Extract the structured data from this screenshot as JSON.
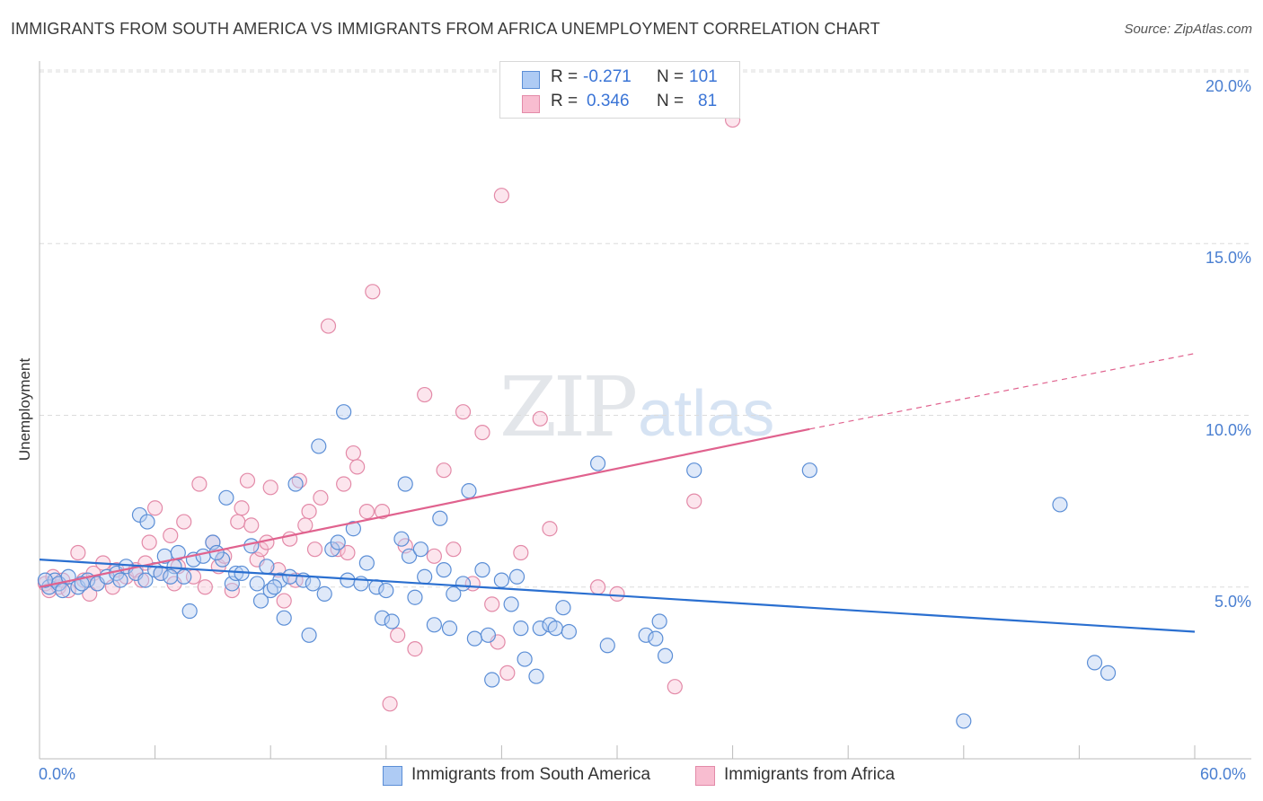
{
  "title": "IMMIGRANTS FROM SOUTH AMERICA VS IMMIGRANTS FROM AFRICA UNEMPLOYMENT CORRELATION CHART",
  "source": "Source: ZipAtlas.com",
  "watermark": {
    "zip": "ZIP",
    "atlas": "atlas"
  },
  "stats": [
    {
      "r_label": "R =",
      "r_value": "-0.271",
      "n_label": "N =",
      "n_value": "101",
      "color": "#aecbf4"
    },
    {
      "r_label": "R =",
      "r_value": "0.346",
      "n_label": "N =",
      "n_value": "81",
      "color": "#f8bdd0"
    }
  ],
  "legend": [
    {
      "label": "Immigrants from South America",
      "color": "#aecbf4"
    },
    {
      "label": "Immigrants from Africa",
      "color": "#f8bdd0"
    }
  ],
  "colors": {
    "blue_stroke": "#5b8ed6",
    "blue_fill": "#b7cff2",
    "blue_line": "#2a6fd0",
    "pink_stroke": "#e38aa8",
    "pink_fill": "#f8c6d6",
    "pink_line": "#e0628e",
    "grid": "#dcdcdc",
    "axis_text": "#4a7fd1"
  },
  "chart_data": {
    "type": "scatter",
    "title": "IMMIGRANTS FROM SOUTH AMERICA VS IMMIGRANTS FROM AFRICA UNEMPLOYMENT CORRELATION CHART",
    "xlabel": "",
    "ylabel": "Unemployment",
    "xlim": [
      0,
      60
    ],
    "ylim": [
      0,
      20
    ],
    "x_tick_labels": [
      "0.0%",
      "60.0%"
    ],
    "y_tick_labels": [
      "5.0%",
      "10.0%",
      "15.0%",
      "20.0%"
    ],
    "y_ticks": [
      5,
      10,
      15,
      20
    ],
    "grid": true,
    "legend_position": "bottom-center",
    "series": [
      {
        "name": "Immigrants from South America",
        "color": "#aecbf4",
        "trend": {
          "x": [
            0,
            60
          ],
          "y": [
            5.8,
            3.7
          ]
        },
        "points": [
          [
            0.5,
            5.0
          ],
          [
            0.8,
            5.2
          ],
          [
            1.0,
            5.1
          ],
          [
            1.2,
            4.9
          ],
          [
            1.5,
            5.3
          ],
          [
            2.0,
            5.0
          ],
          [
            2.5,
            5.2
          ],
          [
            3.0,
            5.1
          ],
          [
            3.5,
            5.3
          ],
          [
            4.0,
            5.4
          ],
          [
            4.2,
            5.2
          ],
          [
            4.5,
            5.6
          ],
          [
            5.0,
            5.4
          ],
          [
            5.2,
            7.1
          ],
          [
            5.5,
            5.2
          ],
          [
            5.6,
            6.9
          ],
          [
            6.0,
            5.5
          ],
          [
            6.3,
            5.4
          ],
          [
            6.5,
            5.9
          ],
          [
            7.0,
            5.6
          ],
          [
            7.2,
            6.0
          ],
          [
            7.5,
            5.3
          ],
          [
            7.8,
            4.3
          ],
          [
            8.0,
            5.8
          ],
          [
            8.5,
            5.9
          ],
          [
            9.0,
            6.3
          ],
          [
            9.5,
            5.8
          ],
          [
            9.7,
            7.6
          ],
          [
            10.0,
            5.1
          ],
          [
            10.2,
            5.4
          ],
          [
            10.5,
            5.4
          ],
          [
            11.0,
            6.2
          ],
          [
            11.3,
            5.1
          ],
          [
            11.5,
            4.6
          ],
          [
            11.8,
            5.6
          ],
          [
            12.0,
            4.9
          ],
          [
            12.5,
            5.2
          ],
          [
            12.7,
            4.1
          ],
          [
            13.0,
            5.3
          ],
          [
            13.3,
            8.0
          ],
          [
            13.7,
            5.2
          ],
          [
            14.0,
            3.6
          ],
          [
            14.5,
            9.1
          ],
          [
            14.8,
            4.8
          ],
          [
            15.2,
            6.1
          ],
          [
            15.5,
            6.3
          ],
          [
            15.8,
            10.1
          ],
          [
            16.0,
            5.2
          ],
          [
            16.3,
            6.7
          ],
          [
            16.7,
            5.1
          ],
          [
            17.0,
            5.7
          ],
          [
            17.5,
            5.0
          ],
          [
            17.8,
            4.1
          ],
          [
            18.0,
            4.9
          ],
          [
            18.3,
            4.0
          ],
          [
            18.8,
            6.4
          ],
          [
            19.0,
            8.0
          ],
          [
            19.2,
            5.9
          ],
          [
            19.5,
            4.7
          ],
          [
            19.8,
            6.1
          ],
          [
            20.0,
            5.3
          ],
          [
            20.5,
            3.9
          ],
          [
            20.8,
            7.0
          ],
          [
            21.0,
            5.5
          ],
          [
            21.3,
            3.8
          ],
          [
            21.5,
            4.8
          ],
          [
            22.0,
            5.1
          ],
          [
            22.3,
            7.8
          ],
          [
            22.6,
            3.5
          ],
          [
            23.0,
            5.5
          ],
          [
            23.3,
            3.6
          ],
          [
            23.5,
            2.3
          ],
          [
            24.0,
            5.2
          ],
          [
            24.5,
            4.5
          ],
          [
            24.8,
            5.3
          ],
          [
            25.0,
            3.8
          ],
          [
            25.2,
            2.9
          ],
          [
            25.8,
            2.4
          ],
          [
            26.0,
            3.8
          ],
          [
            26.5,
            3.9
          ],
          [
            26.8,
            3.8
          ],
          [
            27.2,
            4.4
          ],
          [
            27.5,
            3.7
          ],
          [
            29.0,
            8.6
          ],
          [
            29.5,
            3.3
          ],
          [
            31.5,
            3.6
          ],
          [
            32.0,
            3.5
          ],
          [
            32.2,
            4.0
          ],
          [
            32.5,
            3.0
          ],
          [
            34.0,
            8.4
          ],
          [
            40.0,
            8.4
          ],
          [
            48.0,
            1.1
          ],
          [
            53.0,
            7.4
          ],
          [
            54.8,
            2.8
          ],
          [
            55.5,
            2.5
          ],
          [
            0.3,
            5.2
          ],
          [
            2.2,
            5.1
          ],
          [
            6.8,
            5.3
          ],
          [
            9.2,
            6.0
          ],
          [
            12.2,
            5.0
          ],
          [
            14.2,
            5.1
          ]
        ]
      },
      {
        "name": "Immigrants from Africa",
        "color": "#f8bdd0",
        "trend": {
          "x": [
            0,
            40
          ],
          "y": [
            5.0,
            9.6
          ],
          "extension": {
            "x": [
              40,
              60
            ],
            "y": [
              9.6,
              11.8
            ]
          }
        },
        "points": [
          [
            0.3,
            5.1
          ],
          [
            0.7,
            5.3
          ],
          [
            1.0,
            5.0
          ],
          [
            1.5,
            4.9
          ],
          [
            2.0,
            6.0
          ],
          [
            2.3,
            5.2
          ],
          [
            2.8,
            5.4
          ],
          [
            3.0,
            5.1
          ],
          [
            3.3,
            5.7
          ],
          [
            3.8,
            5.0
          ],
          [
            4.0,
            5.5
          ],
          [
            4.5,
            5.3
          ],
          [
            5.0,
            5.5
          ],
          [
            5.3,
            5.2
          ],
          [
            5.5,
            5.7
          ],
          [
            5.7,
            6.3
          ],
          [
            6.0,
            7.3
          ],
          [
            6.3,
            5.4
          ],
          [
            6.8,
            6.5
          ],
          [
            7.0,
            5.1
          ],
          [
            7.2,
            5.6
          ],
          [
            7.5,
            6.9
          ],
          [
            8.0,
            5.3
          ],
          [
            8.3,
            8.0
          ],
          [
            8.6,
            5.0
          ],
          [
            9.0,
            6.3
          ],
          [
            9.3,
            5.6
          ],
          [
            9.6,
            5.9
          ],
          [
            10.0,
            4.9
          ],
          [
            10.3,
            6.9
          ],
          [
            10.5,
            7.3
          ],
          [
            10.8,
            8.1
          ],
          [
            11.0,
            6.8
          ],
          [
            11.3,
            5.8
          ],
          [
            11.5,
            6.1
          ],
          [
            11.8,
            6.3
          ],
          [
            12.0,
            7.9
          ],
          [
            12.4,
            5.5
          ],
          [
            12.7,
            4.6
          ],
          [
            13.0,
            6.4
          ],
          [
            13.3,
            5.2
          ],
          [
            13.5,
            8.1
          ],
          [
            13.8,
            6.8
          ],
          [
            14.0,
            7.2
          ],
          [
            14.3,
            6.1
          ],
          [
            14.6,
            7.6
          ],
          [
            15.0,
            12.6
          ],
          [
            15.5,
            6.1
          ],
          [
            15.8,
            8.0
          ],
          [
            16.0,
            6.0
          ],
          [
            16.3,
            8.9
          ],
          [
            16.5,
            8.5
          ],
          [
            17.0,
            7.2
          ],
          [
            17.3,
            13.6
          ],
          [
            17.8,
            7.2
          ],
          [
            18.2,
            1.6
          ],
          [
            18.6,
            3.6
          ],
          [
            19.0,
            6.2
          ],
          [
            19.5,
            3.2
          ],
          [
            20.0,
            10.6
          ],
          [
            20.5,
            5.9
          ],
          [
            21.0,
            8.4
          ],
          [
            21.5,
            6.1
          ],
          [
            22.0,
            10.1
          ],
          [
            22.5,
            5.1
          ],
          [
            23.0,
            9.5
          ],
          [
            23.5,
            4.5
          ],
          [
            23.8,
            3.4
          ],
          [
            24.0,
            16.4
          ],
          [
            24.3,
            2.5
          ],
          [
            25.0,
            6.0
          ],
          [
            26.0,
            9.9
          ],
          [
            26.5,
            6.7
          ],
          [
            29.0,
            5.0
          ],
          [
            30.0,
            4.8
          ],
          [
            33.0,
            2.1
          ],
          [
            34.0,
            7.5
          ],
          [
            36.0,
            18.6
          ],
          [
            0.5,
            4.9
          ],
          [
            1.2,
            5.2
          ],
          [
            2.6,
            4.8
          ]
        ]
      }
    ]
  }
}
